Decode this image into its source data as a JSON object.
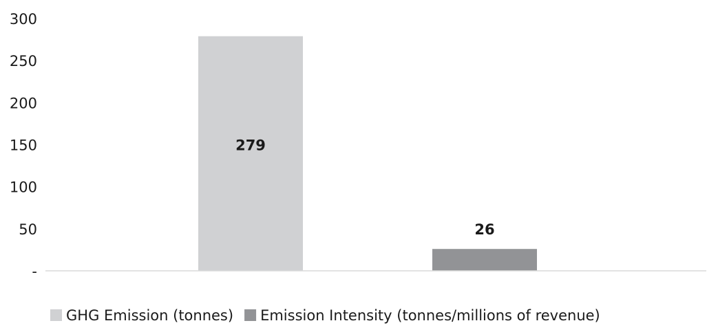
{
  "chart_data": {
    "type": "bar",
    "categories": [
      "GHG Emission (tonnes)",
      "Emission Intensity (tonnes/millions of revenue)"
    ],
    "values": [
      279,
      26
    ],
    "data_labels": [
      "279",
      "26"
    ],
    "colors": [
      "#d0d1d3",
      "#929396"
    ],
    "ylim": [
      0,
      300
    ],
    "yticks": [
      0,
      50,
      100,
      150,
      200,
      250,
      300
    ],
    "ytick_labels": [
      "-",
      "50",
      "100",
      "150",
      "200",
      "250",
      "300"
    ],
    "grid": false,
    "legend": {
      "position": "bottom",
      "entries": [
        "GHG Emission (tonnes)",
        "Emission Intensity (tonnes/millions of revenue)"
      ]
    },
    "title": "",
    "xlabel": "",
    "ylabel": ""
  }
}
